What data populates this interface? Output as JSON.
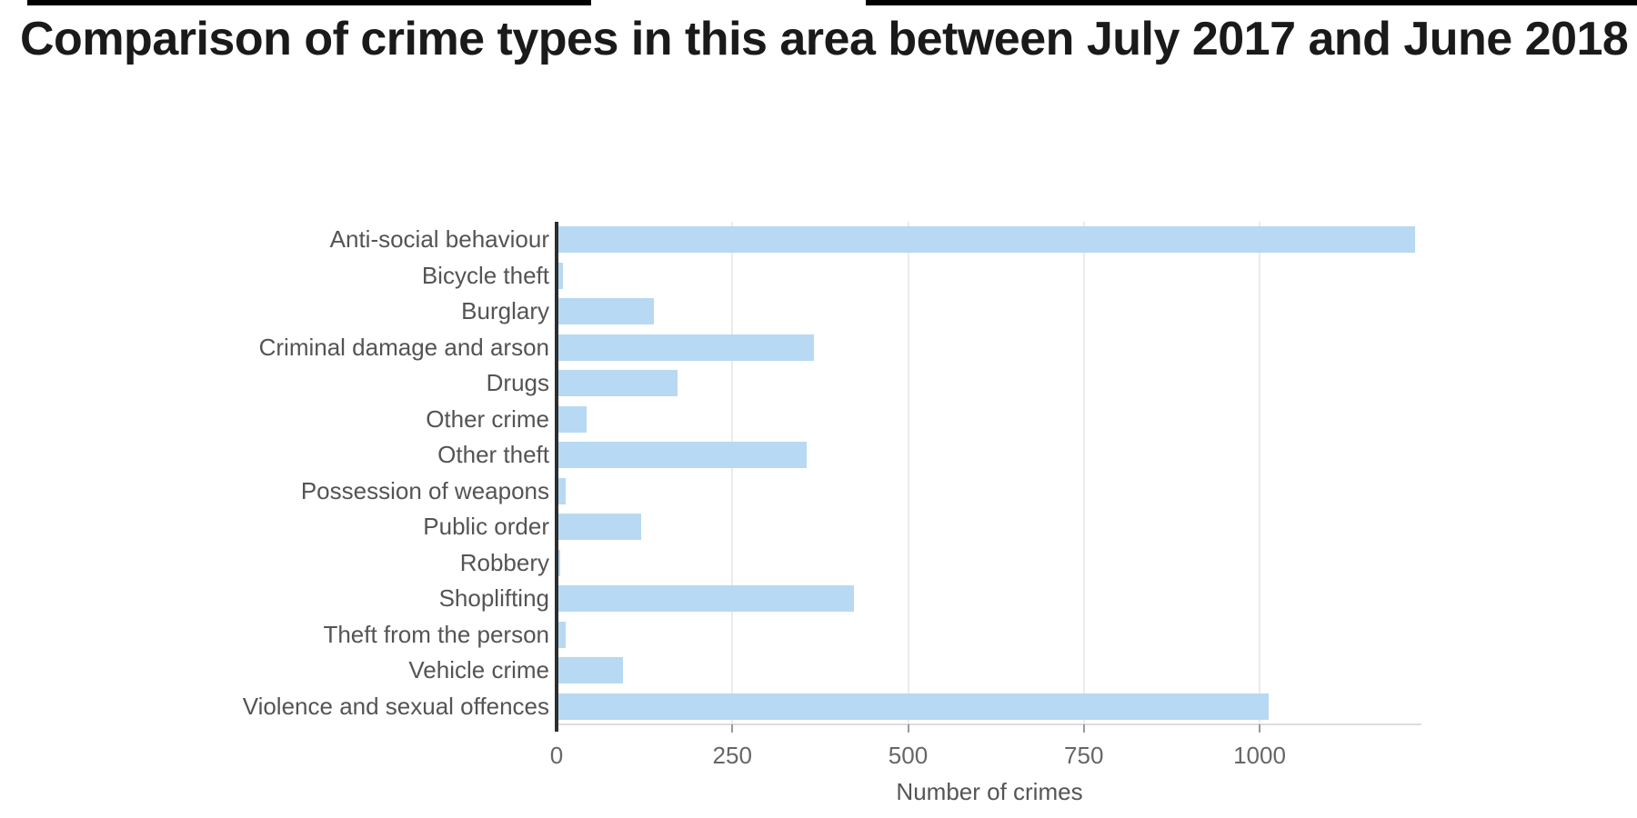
{
  "title": "Comparison of crime types in this area between July 2017 and June 2018",
  "chart_data": {
    "type": "bar",
    "orientation": "horizontal",
    "title": "Comparison of crime types in this area between July 2017 and June 2018",
    "categories": [
      "Anti-social behaviour",
      "Bicycle theft",
      "Burglary",
      "Criminal damage and arson",
      "Drugs",
      "Other crime",
      "Other theft",
      "Possession of weapons",
      "Public order",
      "Robbery",
      "Shoplifting",
      "Theft from the person",
      "Vehicle crime",
      "Violence and sexual offences"
    ],
    "values": [
      1218,
      6,
      136,
      364,
      169,
      40,
      353,
      10,
      118,
      2,
      420,
      10,
      92,
      1010
    ],
    "xlabel": "Number of crimes",
    "ylabel": "",
    "xlim": [
      0,
      1230
    ],
    "xticks": [
      0,
      250,
      500,
      750,
      1000
    ],
    "grid": true,
    "legend": "none",
    "bar_color": "#b7d9f3",
    "axis_color": "#2e2e2e",
    "label_color": "#545454",
    "tick_label_color": "#666666"
  }
}
